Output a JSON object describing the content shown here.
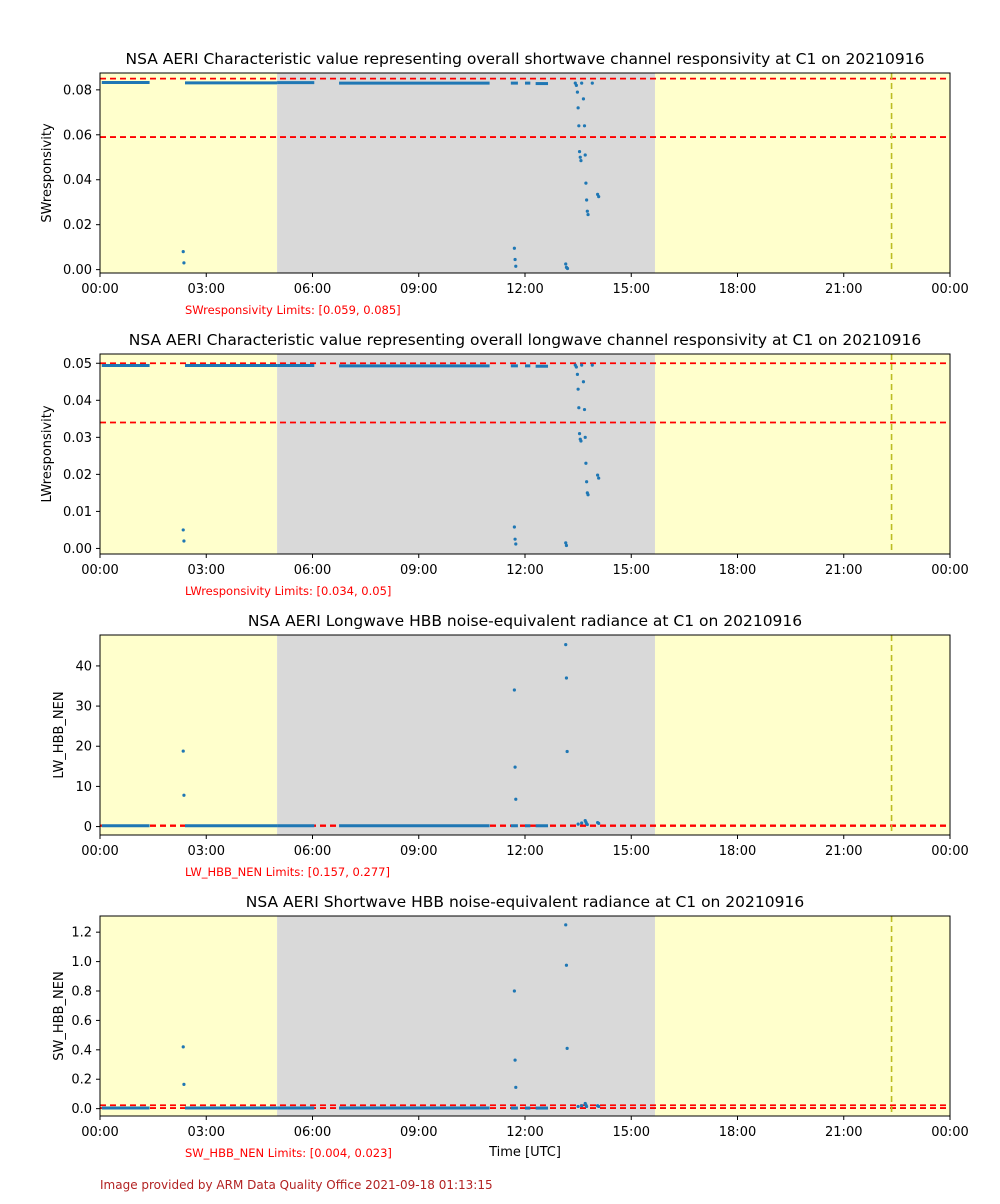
{
  "footer_text": "Image provided by ARM Data Quality Office 2021-09-18 01:13:15",
  "colors": {
    "day_shading": "#ffffcc",
    "night_shading": "#d9d9d9",
    "points": "#1f77b4",
    "limit_lines": "#ff0000",
    "marker_line": "#bcbd22",
    "limits_text": "#ff0000",
    "footer": "#b22222"
  },
  "chart_data": [
    {
      "type": "scatter",
      "title": "NSA AERI Characteristic value representing overall shortwave channel responsivity at C1 on 20210916",
      "xlabel": "",
      "ylabel": "SWresponsivity",
      "limits_label": "SWresponsivity Limits: [0.059, 0.085]",
      "limits": [
        0.059,
        0.085
      ],
      "x_ticks": [
        "00:00",
        "03:00",
        "06:00",
        "09:00",
        "12:00",
        "15:00",
        "18:00",
        "21:00",
        "00:00"
      ],
      "xlim_hours": [
        0,
        24
      ],
      "ylim": [
        -0.0015,
        0.0875
      ],
      "y_ticks": [
        0.0,
        0.02,
        0.04,
        0.06,
        0.08
      ],
      "y_tick_labels": [
        "0.00",
        "0.02",
        "0.04",
        "0.06",
        "0.08"
      ],
      "shading": [
        {
          "from": 0,
          "to": 5.0,
          "kind": "day"
        },
        {
          "from": 5.0,
          "to": 15.67,
          "kind": "night"
        },
        {
          "from": 15.67,
          "to": 24,
          "kind": "day"
        }
      ],
      "marker_line_hour": 22.35,
      "dense_segments": [
        [
          0.05,
          1.4,
          0.0833
        ],
        [
          2.4,
          5.0,
          0.0831
        ],
        [
          5.0,
          6.05,
          0.0832
        ],
        [
          6.75,
          11.0,
          0.083
        ],
        [
          11.6,
          11.8,
          0.083
        ],
        [
          12.0,
          12.15,
          0.083
        ],
        [
          12.3,
          12.65,
          0.0828
        ]
      ],
      "points": [
        [
          2.35,
          0.008
        ],
        [
          2.37,
          0.003
        ],
        [
          11.7,
          0.0095
        ],
        [
          11.72,
          0.0045
        ],
        [
          11.74,
          0.0015
        ],
        [
          13.15,
          0.0025
        ],
        [
          13.17,
          0.001
        ],
        [
          13.2,
          0.0005
        ],
        [
          13.42,
          0.083
        ],
        [
          13.45,
          0.082
        ],
        [
          13.48,
          0.079
        ],
        [
          13.5,
          0.072
        ],
        [
          13.52,
          0.064
        ],
        [
          13.54,
          0.0525
        ],
        [
          13.56,
          0.05
        ],
        [
          13.58,
          0.0485
        ],
        [
          13.6,
          0.083
        ],
        [
          13.65,
          0.076
        ],
        [
          13.68,
          0.064
        ],
        [
          13.7,
          0.051
        ],
        [
          13.72,
          0.0385
        ],
        [
          13.74,
          0.031
        ],
        [
          13.76,
          0.026
        ],
        [
          13.78,
          0.0245
        ],
        [
          13.9,
          0.083
        ],
        [
          14.05,
          0.0335
        ],
        [
          14.08,
          0.0325
        ]
      ]
    },
    {
      "type": "scatter",
      "title": "NSA AERI Characteristic value representing overall longwave channel responsivity at C1 on 20210916",
      "xlabel": "",
      "ylabel": "LWresponsivity",
      "limits_label": "LWresponsivity Limits: [0.034, 0.05]",
      "limits": [
        0.034,
        0.05
      ],
      "x_ticks": [
        "00:00",
        "03:00",
        "06:00",
        "09:00",
        "12:00",
        "15:00",
        "18:00",
        "21:00",
        "00:00"
      ],
      "xlim_hours": [
        0,
        24
      ],
      "ylim": [
        -0.0015,
        0.0525
      ],
      "y_ticks": [
        0.0,
        0.01,
        0.02,
        0.03,
        0.04,
        0.05
      ],
      "y_tick_labels": [
        "0.00",
        "0.01",
        "0.02",
        "0.03",
        "0.04",
        "0.05"
      ],
      "shading": [
        {
          "from": 0,
          "to": 5.0,
          "kind": "day"
        },
        {
          "from": 5.0,
          "to": 15.67,
          "kind": "night"
        },
        {
          "from": 15.67,
          "to": 24,
          "kind": "day"
        }
      ],
      "marker_line_hour": 22.35,
      "dense_segments": [
        [
          0.05,
          1.4,
          0.0494
        ],
        [
          2.4,
          5.0,
          0.0494
        ],
        [
          5.0,
          6.05,
          0.0494
        ],
        [
          6.75,
          11.0,
          0.0493
        ],
        [
          11.6,
          11.8,
          0.0493
        ],
        [
          12.0,
          12.15,
          0.0493
        ],
        [
          12.3,
          12.65,
          0.0492
        ]
      ],
      "points": [
        [
          2.35,
          0.005
        ],
        [
          2.37,
          0.002
        ],
        [
          11.7,
          0.0058
        ],
        [
          11.72,
          0.0025
        ],
        [
          11.74,
          0.0012
        ],
        [
          13.15,
          0.0015
        ],
        [
          13.17,
          0.0008
        ],
        [
          13.42,
          0.0495
        ],
        [
          13.45,
          0.049
        ],
        [
          13.48,
          0.047
        ],
        [
          13.5,
          0.043
        ],
        [
          13.52,
          0.038
        ],
        [
          13.54,
          0.031
        ],
        [
          13.56,
          0.0295
        ],
        [
          13.58,
          0.029
        ],
        [
          13.6,
          0.0495
        ],
        [
          13.65,
          0.045
        ],
        [
          13.68,
          0.0375
        ],
        [
          13.7,
          0.03
        ],
        [
          13.72,
          0.023
        ],
        [
          13.74,
          0.018
        ],
        [
          13.76,
          0.015
        ],
        [
          13.78,
          0.0145
        ],
        [
          13.9,
          0.0495
        ],
        [
          14.05,
          0.0198
        ],
        [
          14.08,
          0.019
        ]
      ]
    },
    {
      "type": "scatter",
      "title": "NSA AERI Longwave HBB noise-equivalent radiance at C1 on 20210916",
      "xlabel": "",
      "ylabel": "LW_HBB_NEN",
      "limits_label": "LW_HBB_NEN Limits: [0.157, 0.277]",
      "limits": [
        0.157,
        0.277
      ],
      "x_ticks": [
        "00:00",
        "03:00",
        "06:00",
        "09:00",
        "12:00",
        "15:00",
        "18:00",
        "21:00",
        "00:00"
      ],
      "xlim_hours": [
        0,
        24
      ],
      "ylim": [
        -2.1,
        47.7
      ],
      "y_ticks": [
        0,
        10,
        20,
        30,
        40
      ],
      "y_tick_labels": [
        "0",
        "10",
        "20",
        "30",
        "40"
      ],
      "shading": [
        {
          "from": 0,
          "to": 5.0,
          "kind": "day"
        },
        {
          "from": 5.0,
          "to": 15.67,
          "kind": "night"
        },
        {
          "from": 15.67,
          "to": 24,
          "kind": "day"
        }
      ],
      "marker_line_hour": 22.35,
      "dense_segments": [
        [
          0.05,
          1.4,
          0.2
        ],
        [
          2.4,
          5.0,
          0.2
        ],
        [
          5.0,
          6.05,
          0.2
        ],
        [
          6.75,
          11.0,
          0.2
        ],
        [
          11.6,
          11.8,
          0.2
        ],
        [
          12.0,
          12.15,
          0.2
        ],
        [
          12.3,
          12.65,
          0.2
        ]
      ],
      "points": [
        [
          2.35,
          18.8
        ],
        [
          2.37,
          7.8
        ],
        [
          11.7,
          34.0
        ],
        [
          11.72,
          14.8
        ],
        [
          11.74,
          6.8
        ],
        [
          13.15,
          45.3
        ],
        [
          13.17,
          37.0
        ],
        [
          13.19,
          18.7
        ],
        [
          13.5,
          0.6
        ],
        [
          13.6,
          0.9
        ],
        [
          13.7,
          1.5
        ],
        [
          13.72,
          1.1
        ],
        [
          13.74,
          0.7
        ],
        [
          13.76,
          0.5
        ],
        [
          14.05,
          1.0
        ],
        [
          14.08,
          0.8
        ]
      ]
    },
    {
      "type": "scatter",
      "title": "NSA AERI Shortwave HBB noise-equivalent radiance at C1 on 20210916",
      "xlabel": "Time [UTC]",
      "ylabel": "SW_HBB_NEN",
      "limits_label": "SW_HBB_NEN Limits: [0.004, 0.023]",
      "limits": [
        0.004,
        0.023
      ],
      "x_ticks": [
        "00:00",
        "03:00",
        "06:00",
        "09:00",
        "12:00",
        "15:00",
        "18:00",
        "21:00",
        "00:00"
      ],
      "xlim_hours": [
        0,
        24
      ],
      "ylim": [
        -0.05,
        1.31
      ],
      "y_ticks": [
        0.0,
        0.2,
        0.4,
        0.6,
        0.8,
        1.0,
        1.2
      ],
      "y_tick_labels": [
        "0.0",
        "0.2",
        "0.4",
        "0.6",
        "0.8",
        "1.0",
        "1.2"
      ],
      "shading": [
        {
          "from": 0,
          "to": 5.0,
          "kind": "day"
        },
        {
          "from": 5.0,
          "to": 15.67,
          "kind": "night"
        },
        {
          "from": 15.67,
          "to": 24,
          "kind": "day"
        }
      ],
      "marker_line_hour": 22.35,
      "dense_segments": [
        [
          0.05,
          1.4,
          0.004
        ],
        [
          2.4,
          5.0,
          0.004
        ],
        [
          5.0,
          6.05,
          0.004
        ],
        [
          6.75,
          11.0,
          0.004
        ],
        [
          11.6,
          11.8,
          0.004
        ],
        [
          12.0,
          12.15,
          0.004
        ],
        [
          12.3,
          12.65,
          0.004
        ]
      ],
      "points": [
        [
          2.35,
          0.42
        ],
        [
          2.37,
          0.165
        ],
        [
          11.7,
          0.8
        ],
        [
          11.72,
          0.33
        ],
        [
          11.74,
          0.145
        ],
        [
          13.15,
          1.25
        ],
        [
          13.17,
          0.975
        ],
        [
          13.19,
          0.41
        ],
        [
          13.5,
          0.015
        ],
        [
          13.6,
          0.02
        ],
        [
          13.7,
          0.035
        ],
        [
          13.72,
          0.025
        ],
        [
          13.74,
          0.015
        ],
        [
          14.05,
          0.02
        ],
        [
          14.08,
          0.015
        ]
      ]
    }
  ]
}
